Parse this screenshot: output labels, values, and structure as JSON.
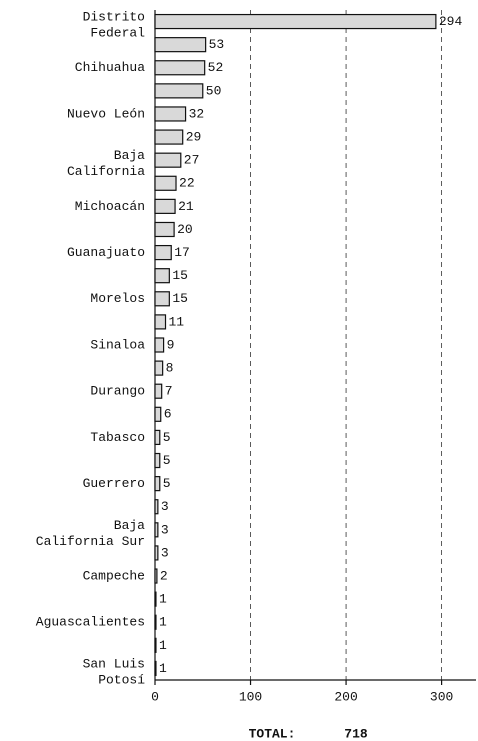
{
  "chart_data": {
    "type": "barh",
    "categories": [
      "Distrito\nFederal",
      null,
      "Chihuahua",
      null,
      "Nuevo León",
      null,
      "Baja\nCalifornia",
      null,
      "Michoacán",
      null,
      "Guanajuato",
      null,
      "Morelos",
      null,
      "Sinaloa",
      null,
      "Durango",
      null,
      "Tabasco",
      null,
      "Guerrero",
      null,
      "Baja\nCalifornia Sur",
      null,
      "Campeche",
      null,
      "Aguascalientes",
      null,
      "San Luis\nPotosí"
    ],
    "values": [
      294,
      53,
      52,
      50,
      32,
      29,
      27,
      22,
      21,
      20,
      17,
      15,
      15,
      11,
      9,
      8,
      7,
      6,
      5,
      5,
      5,
      3,
      3,
      3,
      2,
      1,
      1,
      1,
      1
    ],
    "color": "#d9d9d9",
    "xlim": [
      0,
      336
    ],
    "xticks": [
      0,
      100,
      200,
      300
    ],
    "grid": true,
    "annotations": [
      "TOTAL:",
      "718"
    ]
  }
}
